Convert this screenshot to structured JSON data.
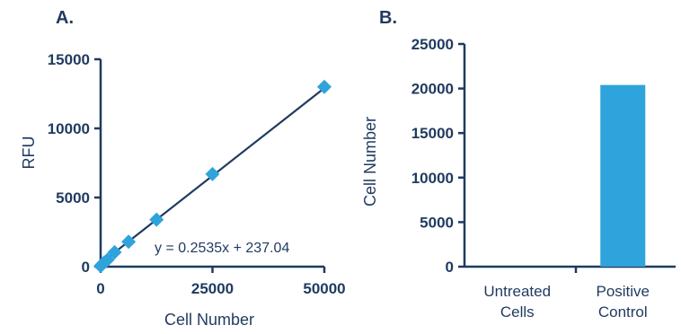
{
  "colors": {
    "axis": "#1f3a5f",
    "series": "#2ea3dc",
    "fit_line": "#1f3a5f"
  },
  "chart_data": [
    {
      "panel_label": "A.",
      "type": "scatter",
      "xlabel": "Cell Number",
      "ylabel": "RFU",
      "xlim": [
        0,
        50000
      ],
      "ylim": [
        0,
        15000
      ],
      "xticks": [
        "0",
        "25000",
        "50000"
      ],
      "yticks": [
        "0",
        "5000",
        "10000",
        "15000"
      ],
      "marker": "diamond",
      "series": [
        {
          "x": [
            0,
            781,
            1563,
            3125,
            6250,
            12500,
            25000,
            50000
          ],
          "y": [
            50,
            300,
            500,
            1050,
            1800,
            3400,
            6700,
            13000
          ]
        }
      ],
      "fit": {
        "equation": "y = 0.2535x + 237.04",
        "slope": 0.2535,
        "intercept": 237.04
      },
      "grid": false
    },
    {
      "panel_label": "B.",
      "type": "bar",
      "ylabel": "Cell Number",
      "ylim": [
        0,
        25000
      ],
      "yticks": [
        "0",
        "5000",
        "10000",
        "15000",
        "20000",
        "25000"
      ],
      "categories": [
        [
          "Untreated",
          "Cells"
        ],
        [
          "Positive",
          "Control"
        ]
      ],
      "values": [
        0,
        20400
      ],
      "grid": false
    }
  ]
}
